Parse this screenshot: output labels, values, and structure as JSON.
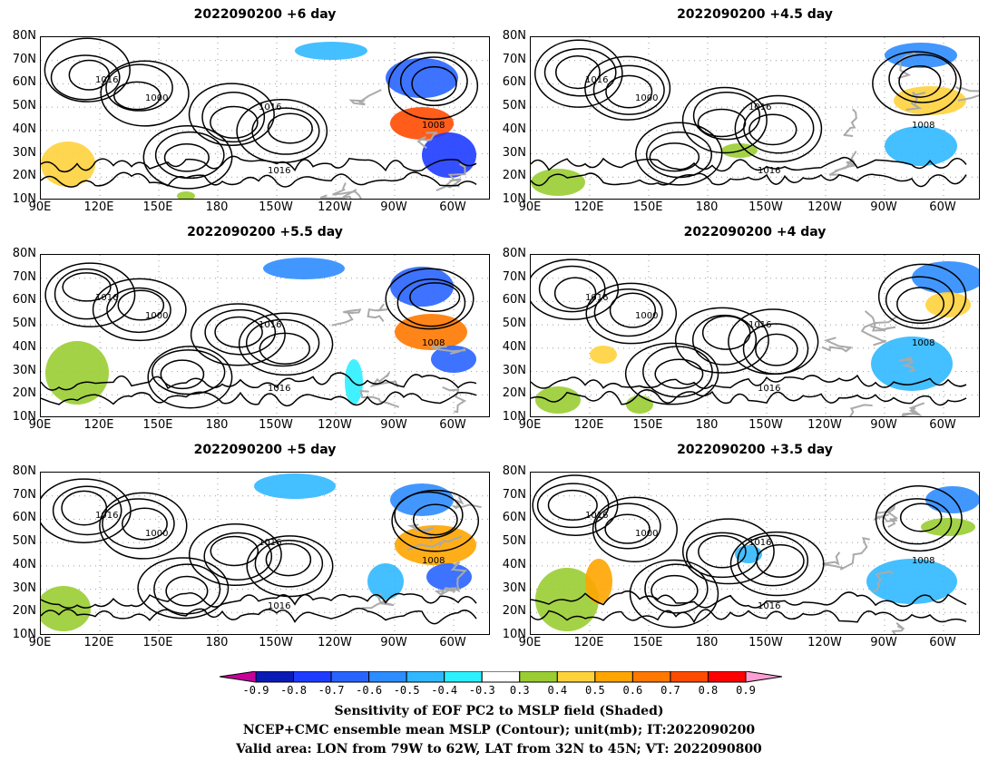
{
  "panels": [
    {
      "title": "2022090200 +6 day"
    },
    {
      "title": "2022090200 +4.5 day"
    },
    {
      "title": "2022090200 +5.5 day"
    },
    {
      "title": "2022090200 +4 day"
    },
    {
      "title": "2022090200 +5 day"
    },
    {
      "title": "2022090200 +3.5 day"
    }
  ],
  "lat_labels": [
    "80N",
    "70N",
    "60N",
    "50N",
    "40N",
    "30N",
    "20N",
    "10N"
  ],
  "lon_labels": [
    "90E",
    "120E",
    "150E",
    "180",
    "150W",
    "120W",
    "90W",
    "60W"
  ],
  "contour_labels": [
    "1000",
    "1008",
    "1016"
  ],
  "colorbar": {
    "levels": [
      "-0.9",
      "-0.8",
      "-0.7",
      "-0.6",
      "-0.5",
      "-0.4",
      "-0.3",
      "0.3",
      "0.4",
      "0.5",
      "0.6",
      "0.7",
      "0.8",
      "0.9"
    ],
    "colors": [
      "#c8009b",
      "#0a1ab4",
      "#1e3cff",
      "#2864ff",
      "#2d8cff",
      "#30b8ff",
      "#2df0ff",
      "#ffffff",
      "#9acd32",
      "#ffd23c",
      "#ffa500",
      "#ff7800",
      "#ff4b00",
      "#ff0000",
      "#ff9ed4"
    ]
  },
  "caption": {
    "line1": "Sensitivity of EOF PC2 to MSLP field (Shaded)",
    "line2": "NCEP+CMC ensemble mean MSLP (Contour); unit(mb); IT:2022090200",
    "line3": "Valid area: LON from 79W to 62W, LAT from 32N to 45N; VT: 2022090800"
  }
}
